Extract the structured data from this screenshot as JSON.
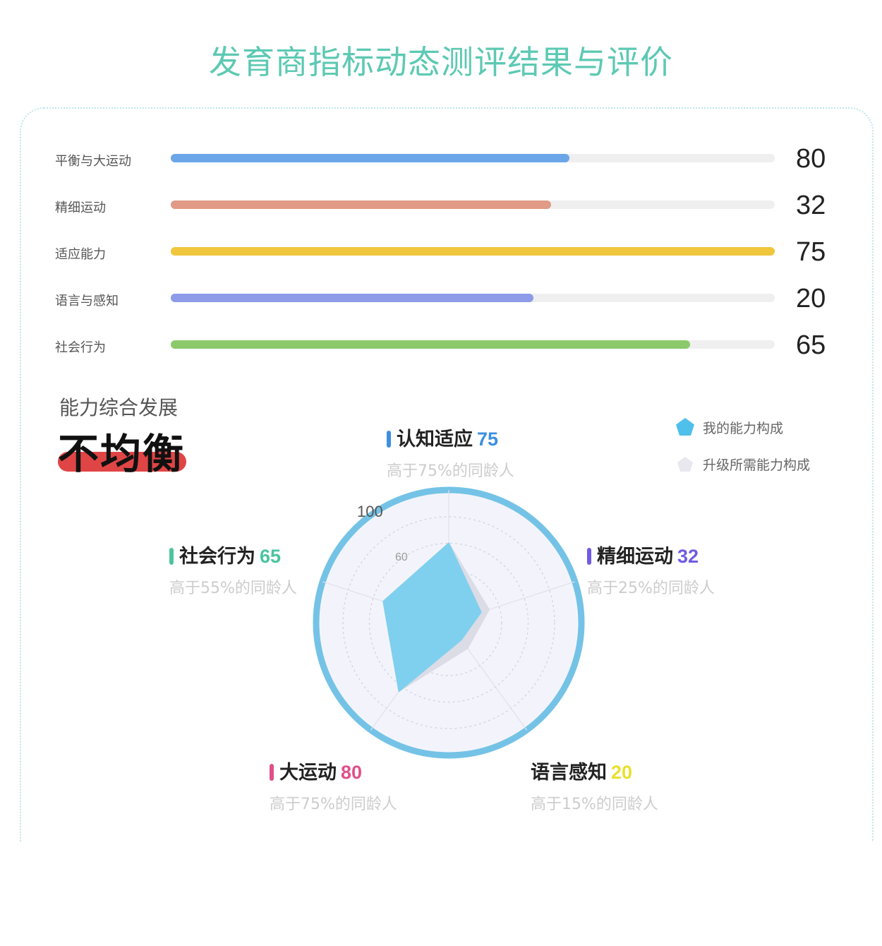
{
  "title": "发育商指标动态测评结果与评价",
  "bars": [
    {
      "label": "平衡与大运动",
      "value": "80",
      "fill": 0.66,
      "color": "#6ba6e8"
    },
    {
      "label": "精细运动",
      "value": "32",
      "fill": 0.63,
      "color": "#e09a86"
    },
    {
      "label": "适应能力",
      "value": "75",
      "fill": 1.0,
      "color": "#f0c63c"
    },
    {
      "label": "语言与感知",
      "value": "20",
      "fill": 0.6,
      "color": "#8d9be8"
    },
    {
      "label": "社会行为",
      "value": "65",
      "fill": 0.86,
      "color": "#8cc96b"
    }
  ],
  "summary": {
    "subtitle": "能力综合发展",
    "verdict": "不均衡"
  },
  "legend": {
    "mine": "我的能力构成",
    "upgrade": "升级所需能力构成"
  },
  "dimensions": [
    {
      "name": "认知适应",
      "value": "75",
      "note": "高于75%的同龄人",
      "color": "#3d8fe0"
    },
    {
      "name": "精细运动",
      "value": "32",
      "note": "高于25%的同龄人",
      "color": "#6f5ce0"
    },
    {
      "name": "语言感知",
      "value": "20",
      "note": "高于15%的同龄人",
      "color": "#e8e030"
    },
    {
      "name": "大运动",
      "value": "80",
      "note": "高于75%的同龄人",
      "color": "#e0508a"
    },
    {
      "name": "社会行为",
      "value": "65",
      "note": "高于55%的同龄人",
      "color": "#4cc4a0"
    }
  ],
  "chart_data": {
    "type": "radar",
    "categories": [
      "认知适应",
      "精细运动",
      "语言感知",
      "大运动",
      "社会行为"
    ],
    "series": [
      {
        "name": "我的能力构成",
        "values": [
          75,
          32,
          20,
          80,
          65
        ],
        "color": "#7fd0ee"
      },
      {
        "name": "升级所需能力构成",
        "values": [
          75,
          40,
          30,
          80,
          65
        ],
        "color": "#dcdce6"
      }
    ],
    "range": [
      0,
      100
    ],
    "tick_labels": [
      "100",
      "60"
    ],
    "grid": true,
    "legend_position": "top-right"
  }
}
